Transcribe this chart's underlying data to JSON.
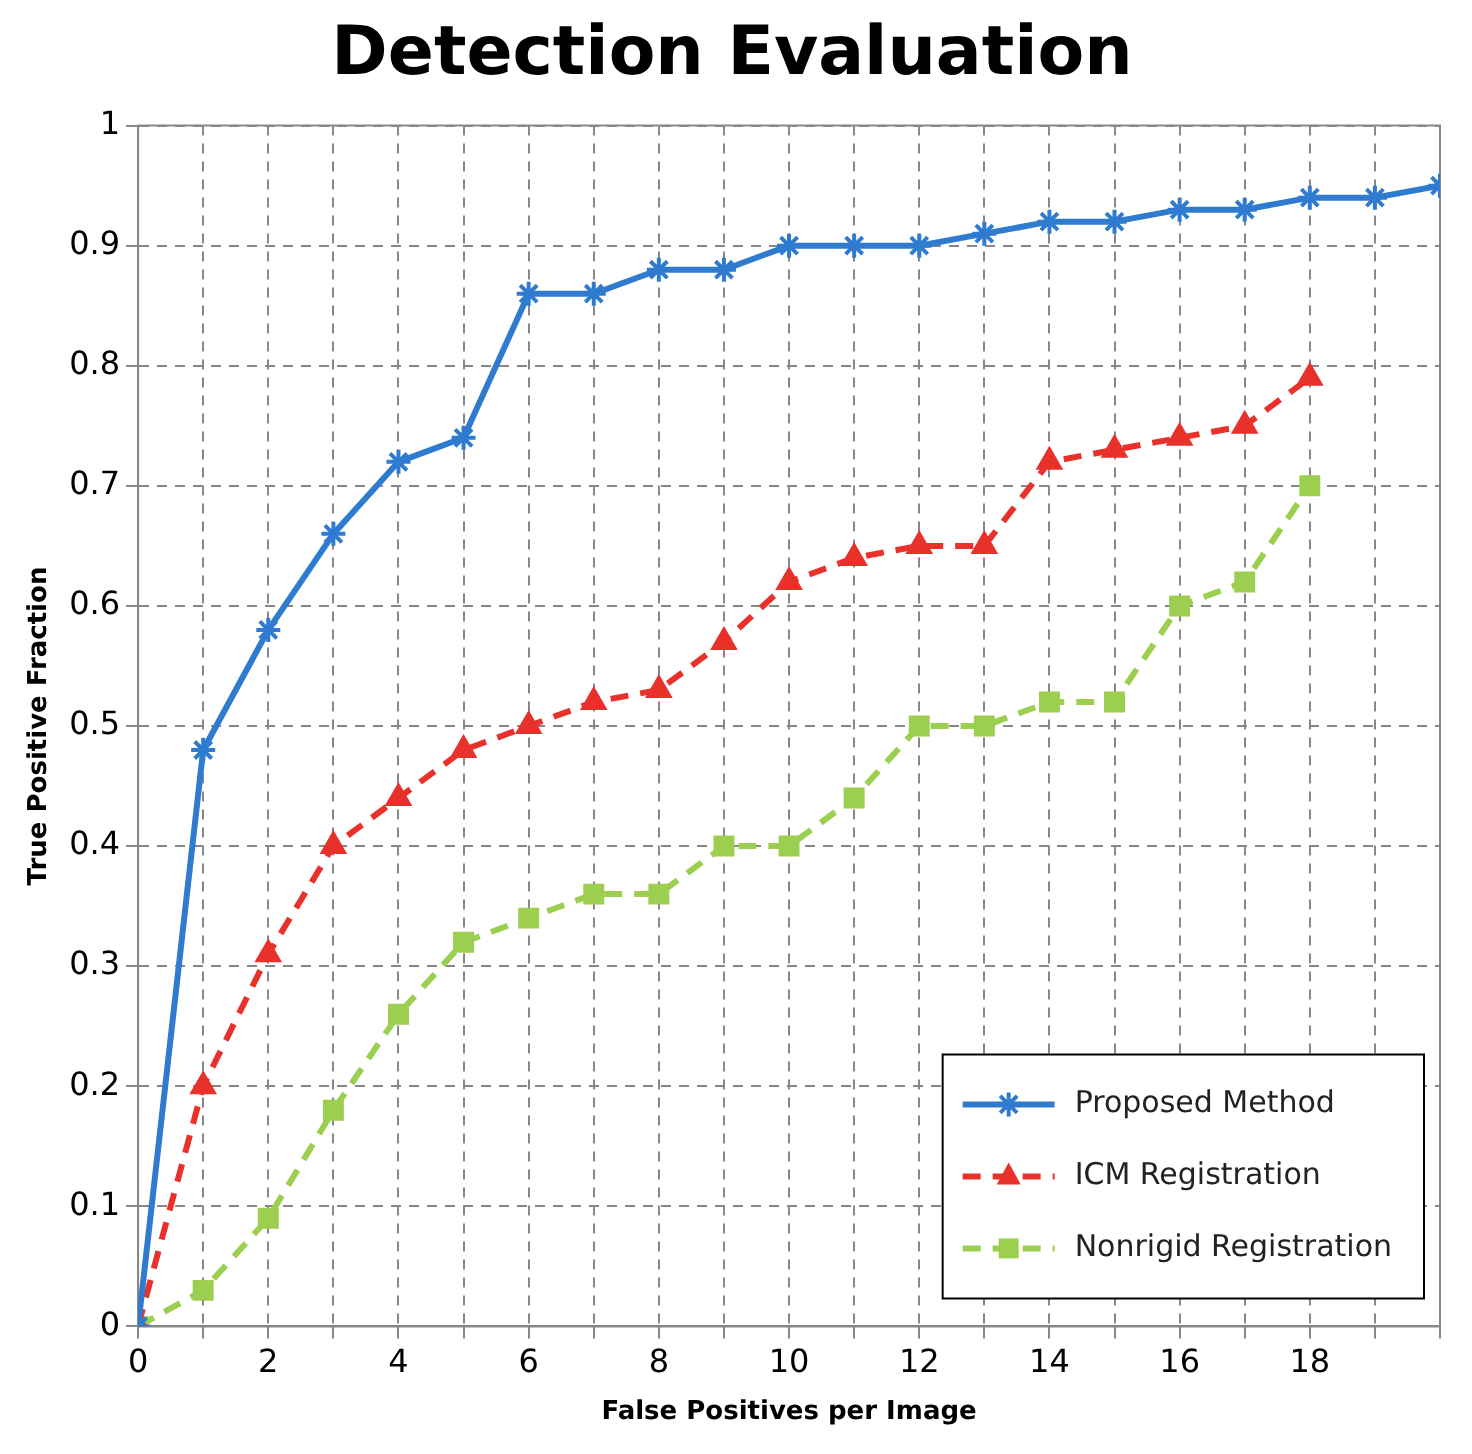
{
  "chart_data": {
    "type": "line",
    "title": "Detection Evaluation",
    "xlabel": "False Positives per Image",
    "ylabel": "True Positive Fraction",
    "x": [
      0,
      1,
      2,
      3,
      4,
      5,
      6,
      7,
      8,
      9,
      10,
      11,
      12,
      13,
      14,
      15,
      16,
      17,
      18,
      19,
      20
    ],
    "series": [
      {
        "name": "Proposed Method",
        "color": "#2e7bcf",
        "marker": "cross",
        "line_style": "solid",
        "values": [
          0,
          0.48,
          0.58,
          0.66,
          0.72,
          0.74,
          0.86,
          0.86,
          0.88,
          0.88,
          0.9,
          0.9,
          0.9,
          0.91,
          0.92,
          0.92,
          0.93,
          0.93,
          0.94,
          0.94,
          0.95
        ]
      },
      {
        "name": "ICM Registration",
        "color": "#e8312a",
        "marker": "triangle",
        "line_style": "dashed",
        "x": [
          0,
          1,
          2,
          3,
          4,
          5,
          6,
          7,
          8,
          9,
          10,
          11,
          12,
          13,
          14,
          15,
          16,
          17,
          18
        ],
        "values": [
          0,
          0.2,
          0.31,
          0.4,
          0.44,
          0.48,
          0.5,
          0.52,
          0.53,
          0.57,
          0.62,
          0.64,
          0.65,
          0.65,
          0.72,
          0.73,
          0.74,
          0.75,
          0.79
        ]
      },
      {
        "name": "Nonrigid Registration",
        "color": "#9ccf50",
        "marker": "square",
        "line_style": "dashed",
        "x": [
          0,
          1,
          2,
          3,
          4,
          5,
          6,
          7,
          8,
          9,
          10,
          11,
          12,
          13,
          14,
          15,
          16,
          17,
          18
        ],
        "values": [
          0,
          0.03,
          0.09,
          0.18,
          0.26,
          0.32,
          0.34,
          0.36,
          0.36,
          0.4,
          0.4,
          0.44,
          0.5,
          0.5,
          0.52,
          0.52,
          0.6,
          0.62,
          0.7
        ]
      }
    ],
    "xlim": [
      0,
      20
    ],
    "xticks": [
      0,
      {
        "value": 1,
        "label": null
      },
      2,
      {
        "value": 3,
        "label": null
      },
      4,
      {
        "value": 5,
        "label": null
      },
      6,
      {
        "value": 7,
        "label": null
      },
      8,
      {
        "value": 9,
        "label": null
      },
      10,
      {
        "value": 11,
        "label": null
      },
      12,
      {
        "value": 13,
        "label": null
      },
      14,
      {
        "value": 15,
        "label": null
      },
      16,
      {
        "value": 17,
        "label": null
      },
      18,
      {
        "value": 19,
        "label": null
      },
      {
        "value": 20,
        "label": null
      }
    ],
    "ylim": [
      0,
      1
    ],
    "yticks": [
      0,
      0.1,
      0.2,
      0.3,
      0.4,
      0.5,
      0.6,
      0.7,
      0.8,
      0.9,
      1
    ],
    "grid": true,
    "legend": "bottom right"
  }
}
